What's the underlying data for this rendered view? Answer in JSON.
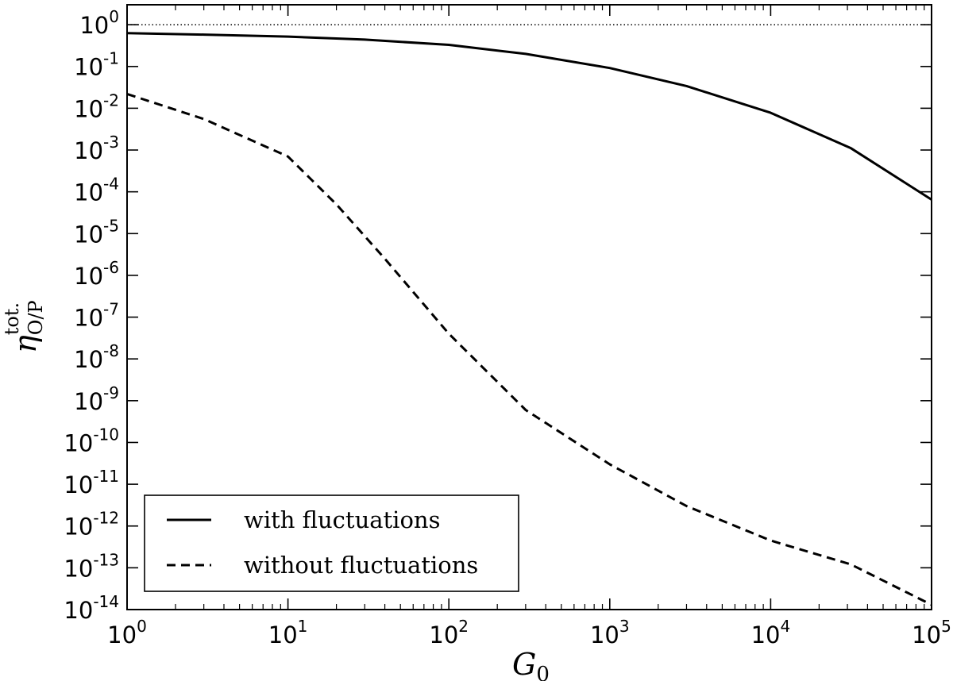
{
  "chart_data": {
    "type": "line",
    "title": "",
    "xlabel": {
      "main": "G",
      "sub": "0"
    },
    "ylabel": {
      "main": "η",
      "sub": "O/P",
      "sup": "tot."
    },
    "xscale": "log",
    "yscale": "log",
    "xlim": [
      1,
      100000
    ],
    "ylim": [
      1e-14,
      3
    ],
    "x_ticks": [
      {
        "base": "10",
        "exp": "0"
      },
      {
        "base": "10",
        "exp": "1"
      },
      {
        "base": "10",
        "exp": "2"
      },
      {
        "base": "10",
        "exp": "3"
      },
      {
        "base": "10",
        "exp": "4"
      },
      {
        "base": "10",
        "exp": "5"
      }
    ],
    "y_ticks": [
      {
        "base": "10",
        "exp": "0"
      },
      {
        "base": "10",
        "exp": "-1"
      },
      {
        "base": "10",
        "exp": "-2"
      },
      {
        "base": "10",
        "exp": "-3"
      },
      {
        "base": "10",
        "exp": "-4"
      },
      {
        "base": "10",
        "exp": "-5"
      },
      {
        "base": "10",
        "exp": "-6"
      },
      {
        "base": "10",
        "exp": "-7"
      },
      {
        "base": "10",
        "exp": "-8"
      },
      {
        "base": "10",
        "exp": "-9"
      },
      {
        "base": "10",
        "exp": "-10"
      },
      {
        "base": "10",
        "exp": "-11"
      },
      {
        "base": "10",
        "exp": "-12"
      },
      {
        "base": "10",
        "exp": "-13"
      },
      {
        "base": "10",
        "exp": "-14"
      }
    ],
    "reference_line": {
      "y": 1,
      "style": "dotted"
    },
    "grid": false,
    "legend_position": "bottom-left",
    "series": [
      {
        "name": "with fluctuations",
        "style": "solid",
        "x": [
          1,
          3,
          10,
          30,
          100,
          300,
          1000,
          3000,
          10000,
          31600,
          100000
        ],
        "y": [
          0.63,
          0.58,
          0.52,
          0.44,
          0.33,
          0.2,
          0.092,
          0.034,
          0.0078,
          0.0011,
          6.5e-05
        ]
      },
      {
        "name": "without fluctuations",
        "style": "dashed",
        "x": [
          1,
          3,
          10,
          20,
          40,
          100,
          300,
          1000,
          3000,
          10000,
          31600,
          100000
        ],
        "y": [
          0.022,
          0.0055,
          0.0007,
          5e-05,
          2.5e-06,
          4e-08,
          6e-10,
          3e-11,
          3e-12,
          4.5e-13,
          1.2e-13,
          1.3e-14
        ]
      }
    ]
  }
}
